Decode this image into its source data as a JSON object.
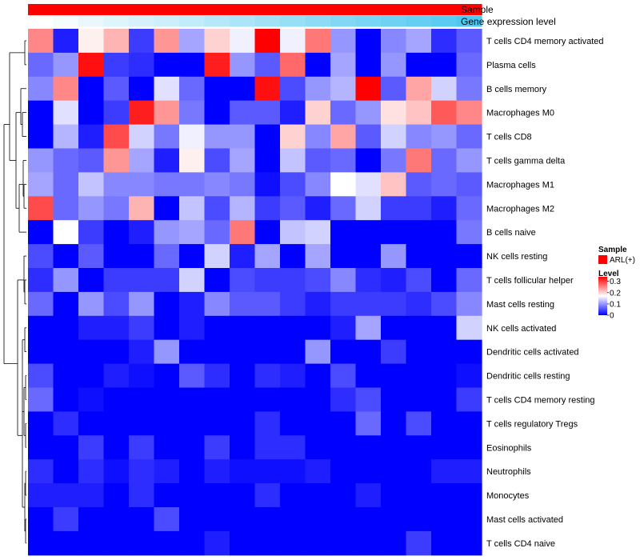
{
  "chart_data": {
    "type": "heatmap",
    "annotations": [
      "Sample",
      "Gene expression level"
    ],
    "rows": [
      "T cells CD4 memory activated",
      "Plasma cells",
      "B cells memory",
      "Macrophages M0",
      "T cells CD8",
      "T cells gamma delta",
      "Macrophages M1",
      "Macrophages M2",
      "B cells naive",
      "NK cells resting",
      "T cells follicular helper",
      "Mast cells resting",
      "NK cells activated",
      "Dendritic cells activated",
      "Dendritic cells resting",
      "T cells CD4 memory resting",
      "T cells regulatory  Tregs",
      "Eosinophils",
      "Neutrophils",
      "Monocytes",
      "Mast cells activated",
      "T cells CD4 naive"
    ],
    "n_samples": 18,
    "values": [
      [
        0.25,
        0.02,
        0.18,
        0.22,
        0.04,
        0.24,
        0.11,
        0.2,
        0.16,
        0.34,
        0.16,
        0.26,
        0.1,
        0.0,
        0.09,
        0.11,
        0.03,
        0.06
      ],
      [
        0.07,
        0.1,
        0.33,
        0.04,
        0.03,
        0.0,
        0.0,
        0.32,
        0.1,
        0.06,
        0.27,
        0.0,
        0.11,
        0.0,
        0.1,
        0.0,
        0.0,
        0.07
      ],
      [
        0.09,
        0.25,
        0.0,
        0.06,
        0.0,
        0.15,
        0.07,
        0.0,
        0.0,
        0.33,
        0.05,
        0.1,
        0.12,
        0.34,
        0.06,
        0.23,
        0.14,
        0.08
      ],
      [
        0.0,
        0.15,
        0.0,
        0.04,
        0.32,
        0.24,
        0.08,
        0.0,
        0.06,
        0.06,
        0.02,
        0.2,
        0.07,
        0.1,
        0.19,
        0.21,
        0.28,
        0.25
      ],
      [
        0.0,
        0.12,
        0.02,
        0.29,
        0.14,
        0.08,
        0.16,
        0.1,
        0.1,
        0.0,
        0.2,
        0.09,
        0.23,
        0.06,
        0.14,
        0.09,
        0.1,
        0.07
      ],
      [
        0.1,
        0.07,
        0.06,
        0.24,
        0.11,
        0.02,
        0.18,
        0.05,
        0.11,
        0.0,
        0.13,
        0.06,
        0.07,
        0.0,
        0.08,
        0.26,
        0.07,
        0.1
      ],
      [
        0.11,
        0.07,
        0.13,
        0.09,
        0.09,
        0.08,
        0.08,
        0.09,
        0.08,
        0.01,
        0.05,
        0.09,
        0.17,
        0.15,
        0.21,
        0.06,
        0.07,
        0.06
      ],
      [
        0.29,
        0.07,
        0.1,
        0.08,
        0.22,
        0.0,
        0.13,
        0.05,
        0.12,
        0.04,
        0.06,
        0.02,
        0.07,
        0.14,
        0.04,
        0.04,
        0.02,
        0.07
      ],
      [
        0.0,
        0.17,
        0.04,
        0.0,
        0.02,
        0.1,
        0.11,
        0.07,
        0.26,
        0.0,
        0.13,
        0.14,
        0.0,
        0.0,
        0.0,
        0.0,
        0.0,
        0.08
      ],
      [
        0.05,
        0.0,
        0.06,
        0.0,
        0.0,
        0.07,
        0.0,
        0.14,
        0.02,
        0.11,
        0.0,
        0.11,
        0.0,
        0.0,
        0.1,
        0.0,
        0.0,
        0.0
      ],
      [
        0.03,
        0.1,
        0.0,
        0.04,
        0.04,
        0.04,
        0.14,
        0.0,
        0.05,
        0.04,
        0.04,
        0.05,
        0.09,
        0.03,
        0.02,
        0.05,
        0.0,
        0.07
      ],
      [
        0.07,
        0.0,
        0.1,
        0.05,
        0.1,
        0.0,
        0.02,
        0.09,
        0.06,
        0.06,
        0.04,
        0.02,
        0.04,
        0.04,
        0.04,
        0.03,
        0.05,
        0.09
      ],
      [
        0.0,
        0.0,
        0.02,
        0.02,
        0.04,
        0.0,
        0.02,
        0.0,
        0.0,
        0.0,
        0.0,
        0.0,
        0.02,
        0.11,
        0.0,
        0.0,
        0.0,
        0.14
      ],
      [
        0.0,
        0.0,
        0.0,
        0.0,
        0.02,
        0.1,
        0.0,
        0.0,
        0.0,
        0.0,
        0.0,
        0.1,
        0.0,
        0.0,
        0.04,
        0.0,
        0.0,
        0.0
      ],
      [
        0.05,
        0.0,
        0.0,
        0.02,
        0.01,
        0.0,
        0.06,
        0.03,
        0.0,
        0.03,
        0.02,
        0.0,
        0.05,
        0.0,
        0.0,
        0.0,
        0.0,
        0.01
      ],
      [
        0.07,
        0.0,
        0.01,
        0.0,
        0.0,
        0.0,
        0.0,
        0.0,
        0.0,
        0.0,
        0.0,
        0.0,
        0.03,
        0.05,
        0.0,
        0.0,
        0.0,
        0.04
      ],
      [
        0.0,
        0.03,
        0.0,
        0.0,
        0.0,
        0.0,
        0.0,
        0.0,
        0.0,
        0.03,
        0.0,
        0.0,
        0.0,
        0.07,
        0.0,
        0.05,
        0.0,
        0.0
      ],
      [
        0.0,
        0.0,
        0.04,
        0.0,
        0.04,
        0.0,
        0.0,
        0.04,
        0.0,
        0.03,
        0.03,
        0.0,
        0.0,
        0.0,
        0.0,
        0.0,
        0.0,
        0.0
      ],
      [
        0.03,
        0.0,
        0.03,
        0.01,
        0.03,
        0.02,
        0.0,
        0.02,
        0.01,
        0.01,
        0.01,
        0.02,
        0.0,
        0.0,
        0.0,
        0.0,
        0.02,
        0.02
      ],
      [
        0.02,
        0.02,
        0.02,
        0.0,
        0.03,
        0.0,
        0.0,
        0.0,
        0.0,
        0.03,
        0.0,
        0.0,
        0.0,
        0.02,
        0.0,
        0.0,
        0.0,
        0.0
      ],
      [
        0.0,
        0.04,
        0.0,
        0.0,
        0.0,
        0.05,
        0.0,
        0.0,
        0.0,
        0.0,
        0.0,
        0.0,
        0.0,
        0.0,
        0.0,
        0.0,
        0.0,
        0.0
      ],
      [
        0.0,
        0.0,
        0.0,
        0.0,
        0.0,
        0.0,
        0.0,
        0.02,
        0.0,
        0.0,
        0.0,
        0.0,
        0.0,
        0.0,
        0.0,
        0.04,
        0.0,
        0.0
      ]
    ],
    "gene_expression_level": [
      0.0,
      0.06,
      0.12,
      0.18,
      0.24,
      0.29,
      0.35,
      0.41,
      0.47,
      0.53,
      0.59,
      0.65,
      0.71,
      0.76,
      0.82,
      0.88,
      0.94,
      1.0
    ],
    "legend": {
      "sample_title": "Sample",
      "sample_entry": "ARL(+)",
      "level_title": "Level",
      "level_ticks": [
        "0.3",
        "0.2",
        "0.1",
        "0"
      ],
      "level_tick_values": [
        0.3,
        0.2,
        0.1,
        0.0
      ],
      "level_range": [
        0,
        0.34
      ],
      "placement": "right"
    },
    "colors": {
      "sample": "#ff0000",
      "low": "#0000ff",
      "mid": "#ffffff",
      "high": "#ff0000",
      "expr_low": "#ffffff",
      "expr_high": "#4fc8f0"
    },
    "dendrogram_side": "left"
  }
}
